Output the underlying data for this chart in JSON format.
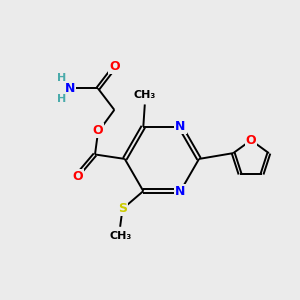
{
  "bg_color": "#ebebeb",
  "atom_colors": {
    "C": "#000000",
    "N": "#0000ff",
    "O": "#ff0000",
    "S": "#cccc00",
    "H": "#4aabab"
  },
  "bond_color": "#000000"
}
